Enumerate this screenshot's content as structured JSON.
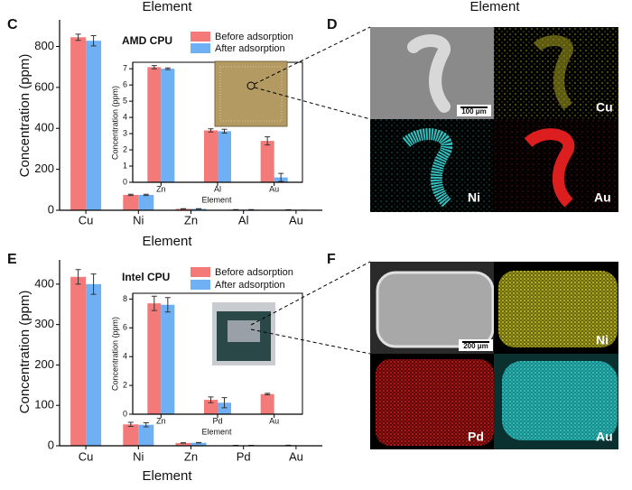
{
  "header_labels": [
    "Element",
    "Element"
  ],
  "chart_data": [
    {
      "type": "bar",
      "panel": "C",
      "annotation": "AMD CPU",
      "xlabel": "Element",
      "ylabel": "Concentration (ppm)",
      "categories": [
        "Cu",
        "Ni",
        "Zn",
        "Al",
        "Au"
      ],
      "series": [
        {
          "name": "Before adsorption",
          "color": "#f47a7a",
          "values": [
            845,
            75,
            7,
            3,
            2.5
          ],
          "errors": [
            15,
            3,
            0.5,
            0.3,
            0.3
          ]
        },
        {
          "name": "After adsorption",
          "color": "#6fb0f5",
          "values": [
            828,
            75,
            7,
            3,
            0.3
          ],
          "errors": [
            25,
            3,
            0.5,
            0.3,
            0.3
          ]
        }
      ],
      "ylim": [
        0,
        930
      ],
      "yticks": [
        0,
        200,
        400,
        600,
        800
      ]
    },
    {
      "type": "bar",
      "xlabel": "Element",
      "ylabel": "Concentration (ppm)",
      "categories": [
        "Zn",
        "Al",
        "Au"
      ],
      "series": [
        {
          "color": "#f47a7a",
          "values": [
            7.1,
            3.2,
            2.55
          ],
          "errors": [
            0.1,
            0.1,
            0.25
          ]
        },
        {
          "color": "#6fb0f5",
          "values": [
            7.0,
            3.15,
            0.3
          ],
          "errors": [
            0.05,
            0.12,
            0.25
          ]
        }
      ],
      "ylim": [
        0,
        7.4
      ],
      "yticks": [
        0,
        1,
        2,
        3,
        4,
        5,
        6,
        7
      ]
    },
    {
      "type": "bar",
      "panel": "E",
      "annotation": "Intel CPU",
      "xlabel": "Element",
      "ylabel": "Concentration (ppm)",
      "categories": [
        "Cu",
        "Ni",
        "Zn",
        "Pd",
        "Au"
      ],
      "series": [
        {
          "name": "Before adsorption",
          "color": "#f47a7a",
          "values": [
            418,
            53,
            7,
            1,
            1.4
          ],
          "errors": [
            18,
            5,
            0.5,
            0.2,
            0.1
          ]
        },
        {
          "name": "After adsorption",
          "color": "#6fb0f5",
          "values": [
            400,
            52,
            7.5,
            0.8,
            null
          ],
          "errors": [
            25,
            5,
            0.5,
            0.35,
            null
          ]
        }
      ],
      "ylim": [
        0,
        460
      ],
      "yticks": [
        0,
        100,
        200,
        300,
        400
      ]
    },
    {
      "type": "bar",
      "xlabel": "Element",
      "ylabel": "Concentration (ppm)",
      "categories": [
        "Zn",
        "Pd",
        "Au"
      ],
      "series": [
        {
          "color": "#f47a7a",
          "values": [
            7.7,
            1.0,
            1.4
          ],
          "errors": [
            0.5,
            0.2,
            0.05
          ]
        },
        {
          "color": "#6fb0f5",
          "values": [
            7.6,
            0.8,
            null
          ],
          "errors": [
            0.5,
            0.35,
            null
          ]
        }
      ],
      "ylim": [
        0,
        8.4
      ],
      "yticks": [
        0,
        2,
        4,
        6,
        8
      ]
    }
  ],
  "micrographs": [
    {
      "panel": "D",
      "scale_bar": "100 μm",
      "labels": [
        "Cu",
        "Ni",
        "Au"
      ]
    },
    {
      "panel": "F",
      "scale_bar": "200 μm",
      "labels": [
        "Ni",
        "Pd",
        "Au"
      ]
    }
  ]
}
